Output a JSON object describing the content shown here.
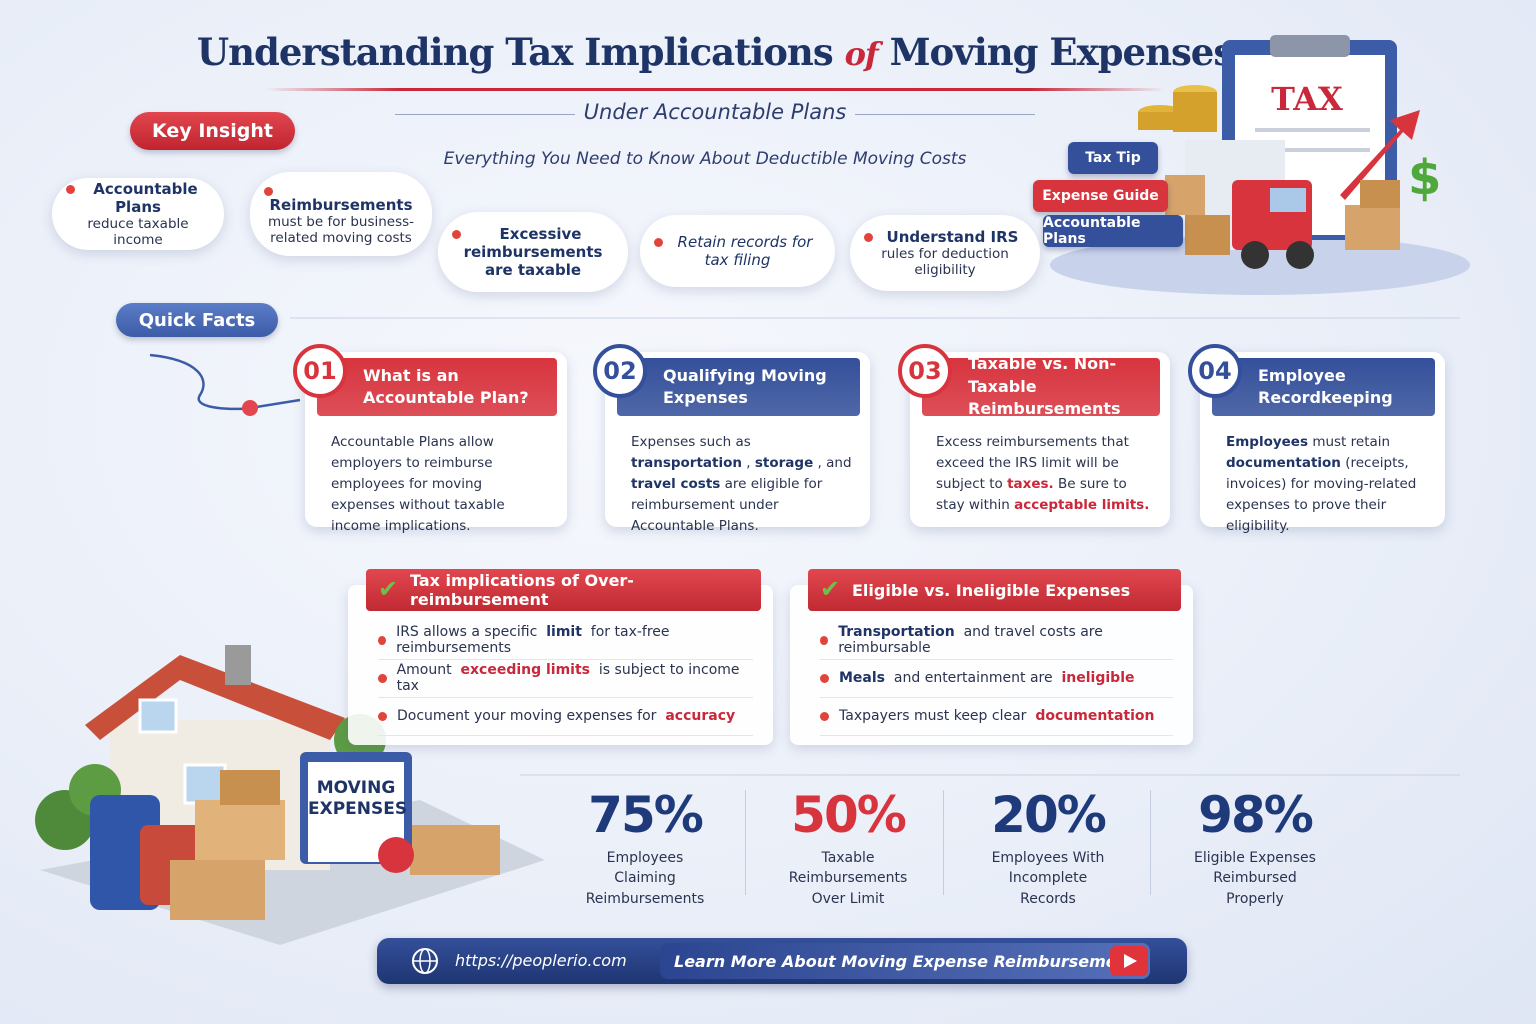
{
  "header": {
    "title_start": "Understanding Tax Implications",
    "title_of": "of",
    "title_end": "Moving Expenses",
    "subtitle": "Under Accountable Plans",
    "tagline": "Everything You Need to Know About Deductible Moving Costs"
  },
  "illustration_top": {
    "clipboard": "TAX",
    "symbol": "$",
    "tags": [
      "Tax Tip",
      "Expense Guide",
      "Accountable Plans"
    ]
  },
  "key_insight": {
    "label": "Key Insight",
    "bubbles": [
      [
        {
          "bold": "Accountable Plans"
        },
        "reduce taxable income"
      ],
      [
        {
          "bold": "Reimbursements"
        },
        "must be for business-related moving costs"
      ],
      [
        {
          "bold": "Excessive reimbursements are taxable"
        }
      ],
      [
        {
          "em": "Retain records for tax filing"
        }
      ],
      [
        {
          "bold": "Understand IRS"
        },
        "rules for deduction eligibility"
      ]
    ]
  },
  "quick_facts": {
    "label": "Quick Facts",
    "cards": [
      {
        "number": "01",
        "title": "What is an Accountable Plan?",
        "color": "#d8343e",
        "body": [
          "Accountable Plans allow employers to reimburse employees for moving expenses without taxable income implications."
        ]
      },
      {
        "number": "02",
        "title": "Qualifying Moving Expenses",
        "color": "#34509a",
        "body": [
          "Expenses such as ",
          {
            "bold": "transportation"
          },
          ", ",
          {
            "bold": "storage"
          },
          ", and ",
          {
            "bold": "travel costs"
          },
          " are eligible for reimbursement under Accountable Plans."
        ]
      },
      {
        "number": "03",
        "title": "Taxable vs. Non-Taxable Reimbursements",
        "color": "#d8343e",
        "body": [
          "Excess reimbursements that exceed the IRS limit will be subject to ",
          {
            "red": "taxes."
          },
          " Be sure to stay within ",
          {
            "red": "acceptable limits."
          }
        ]
      },
      {
        "number": "04",
        "title": "Employee Recordkeeping",
        "color": "#34509a",
        "body": [
          {
            "bold": "Employees"
          },
          " must retain ",
          {
            "bold": "documentation"
          },
          " (receipts, invoices) for moving-related expenses to prove their eligibility."
        ]
      }
    ]
  },
  "panels": [
    {
      "title": "Tax implications of Over-reimbursement",
      "items": [
        [
          "IRS allows a specific ",
          {
            "bold": "limit"
          },
          " for tax-free reimbursements"
        ],
        [
          "Amount ",
          {
            "red": "exceeding limits"
          },
          " is subject to income tax"
        ],
        [
          "Document your moving expenses for ",
          {
            "red": "accuracy"
          }
        ]
      ]
    },
    {
      "title": "Eligible vs. Ineligible Expenses",
      "items": [
        [
          {
            "bold": "Transportation"
          },
          " and travel costs are reimbursable"
        ],
        [
          {
            "bold": "Meals"
          },
          " and entertainment are ",
          {
            "red": "ineligible"
          }
        ],
        [
          "Taxpayers must keep clear ",
          {
            "red": "documentation"
          }
        ]
      ]
    }
  ],
  "illustration_bottom": {
    "sign": "MOVING EXPENSES"
  },
  "stats": [
    {
      "value": "75%",
      "label": "Employees Claiming Reimbursements",
      "color": "#1f3a7a"
    },
    {
      "value": "50%",
      "label": "Taxable Reimbursements Over Limit",
      "color": "#d8343e"
    },
    {
      "value": "20%",
      "label": "Employees With Incomplete Records",
      "color": "#1f3a7a"
    },
    {
      "value": "98%",
      "label": "Eligible Expenses Reimbursed Properly",
      "color": "#1f3a7a"
    }
  ],
  "footer": {
    "url": "https://peoplerio.com",
    "cta": "Learn More About Moving Expense Reimbursements"
  }
}
